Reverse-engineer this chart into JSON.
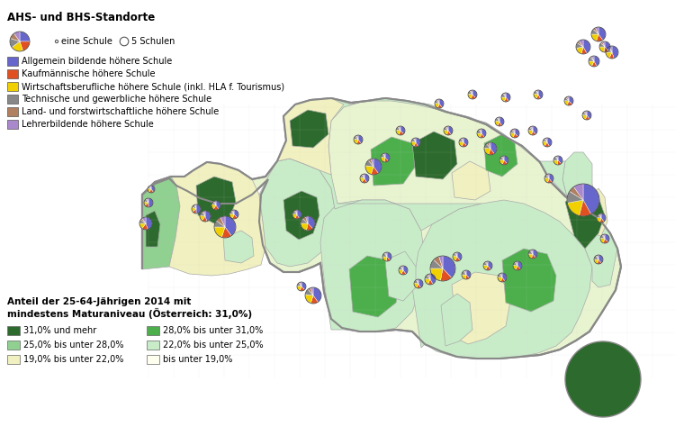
{
  "title_legend1": "AHS- und BHS-Standorte",
  "title_legend2": "Anteil der 25-64-Jährigen 2014 mit\nmindestens Maturaniveau (Österreich: 31,0%)",
  "school_types": [
    {
      "label": "Allgemein bildende höhere Schule",
      "color": "#6666cc"
    },
    {
      "label": "Kaufmännische höhere Schule",
      "color": "#e05020"
    },
    {
      "label": "Wirtschaftsberufliche höhere Schule (inkl. HLA f. Tourismus)",
      "color": "#f0d000"
    },
    {
      "label": "Technische und gewerbliche höhere Schule",
      "color": "#888888"
    },
    {
      "label": "Land- und forstwirtschaftliche höhere Schule",
      "color": "#b08060"
    },
    {
      "label": "Lehrerbildende höhere Schule",
      "color": "#aa88cc"
    }
  ],
  "education_levels": [
    {
      "label": "31,0% und mehr",
      "color": "#2d6a2d"
    },
    {
      "label": "28,0% bis unter 31,0%",
      "color": "#4caf4c"
    },
    {
      "label": "25,0% bis unter 28,0%",
      "color": "#90d090"
    },
    {
      "label": "22,0% bis unter 25,0%",
      "color": "#c8ecc8"
    },
    {
      "label": "19,0% bis unter 22,0%",
      "color": "#f0f0c0"
    },
    {
      "label": "bis unter 19,0%",
      "color": "#fffff0"
    }
  ],
  "size_legend": [
    {
      "label": "eine Schule",
      "size": 4
    },
    {
      "label": "5 Schulen",
      "size": 12
    }
  ],
  "pie_example_slices": [
    0.25,
    0.2,
    0.2,
    0.15,
    0.1,
    0.1
  ],
  "pie_example_colors": [
    "#6666cc",
    "#e05020",
    "#f0d000",
    "#888888",
    "#b08060",
    "#aa88cc"
  ],
  "bg_color": "#ffffff",
  "map_bg": "#e8f4e8",
  "border_color": "#aaaaaa",
  "fig_width": 7.7,
  "fig_height": 4.74,
  "dpi": 100
}
